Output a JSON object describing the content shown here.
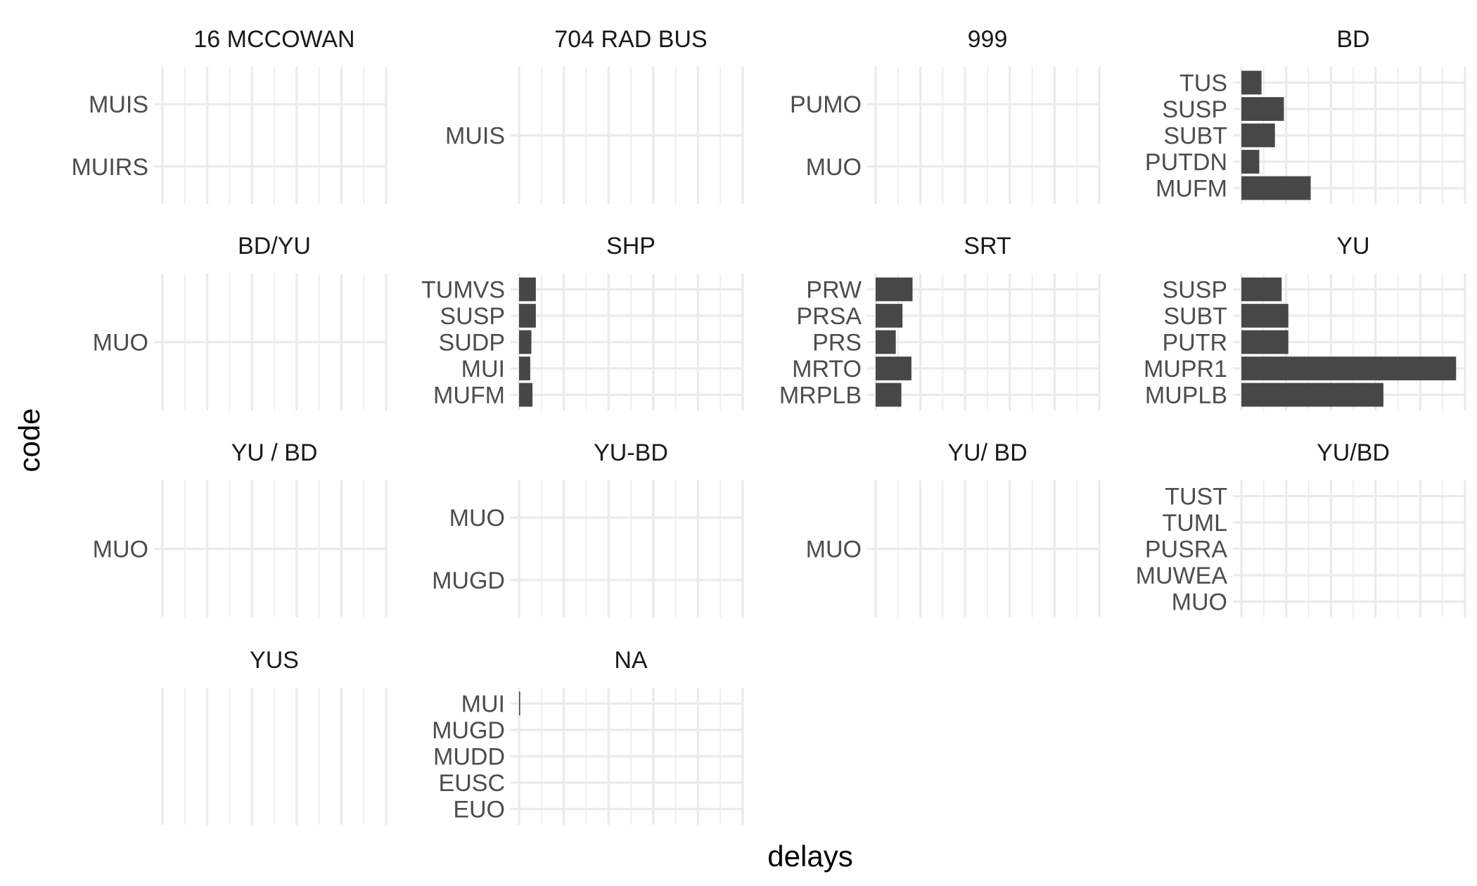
{
  "chart_data": {
    "type": "bar",
    "orientation": "horizontal",
    "facet_layout": "4 columns x 4 rows",
    "xlabel": "delays",
    "ylabel": "code",
    "grid": true,
    "x_tick_labels_shown": false,
    "x_range": [
      0,
      10
    ],
    "bar_color": "#474747",
    "panels": [
      {
        "title": "16 MCCOWAN",
        "categories": [
          "MUIRS",
          "MUIS"
        ],
        "values": [
          0,
          0
        ]
      },
      {
        "title": "704 RAD BUS",
        "categories": [
          "MUIS"
        ],
        "values": [
          0
        ]
      },
      {
        "title": "999",
        "categories": [
          "MUO",
          "PUMO"
        ],
        "values": [
          0,
          0
        ]
      },
      {
        "title": "BD",
        "categories": [
          "MUFM",
          "PUTDN",
          "SUBT",
          "SUSP",
          "TUS"
        ],
        "values": [
          3.1,
          0.8,
          1.5,
          1.9,
          0.9
        ]
      },
      {
        "title": "BD/YU",
        "categories": [
          "MUO"
        ],
        "values": [
          0
        ]
      },
      {
        "title": "SHP",
        "categories": [
          "MUFM",
          "MUI",
          "SUDP",
          "SUSP",
          "TUMVS"
        ],
        "values": [
          0.6,
          0.5,
          0.55,
          0.75,
          0.75
        ]
      },
      {
        "title": "SRT",
        "categories": [
          "MRPLB",
          "MRTO",
          "PRS",
          "PRSA",
          "PRW"
        ],
        "values": [
          1.15,
          1.6,
          0.9,
          1.2,
          1.65
        ]
      },
      {
        "title": "YU",
        "categories": [
          "MUPLB",
          "MUPR1",
          "PUTR",
          "SUBT",
          "SUSP"
        ],
        "values": [
          6.35,
          9.6,
          2.1,
          2.1,
          1.8
        ]
      },
      {
        "title": "YU / BD",
        "categories": [
          "MUO"
        ],
        "values": [
          0
        ]
      },
      {
        "title": "YU-BD",
        "categories": [
          "MUGD",
          "MUO"
        ],
        "values": [
          0,
          0
        ]
      },
      {
        "title": "YU/ BD",
        "categories": [
          "MUO"
        ],
        "values": [
          0
        ]
      },
      {
        "title": "YU/BD",
        "categories": [
          "MUO",
          "MUWEA",
          "PUSRA",
          "TUML",
          "TUST"
        ],
        "values": [
          0,
          0,
          0,
          0,
          0
        ]
      },
      {
        "title": "YUS",
        "categories": [],
        "values": []
      },
      {
        "title": "NA",
        "categories": [
          "EUO",
          "EUSC",
          "MUDD",
          "MUGD",
          "MUI"
        ],
        "values": [
          0,
          0,
          0,
          0,
          0.05
        ]
      }
    ]
  }
}
